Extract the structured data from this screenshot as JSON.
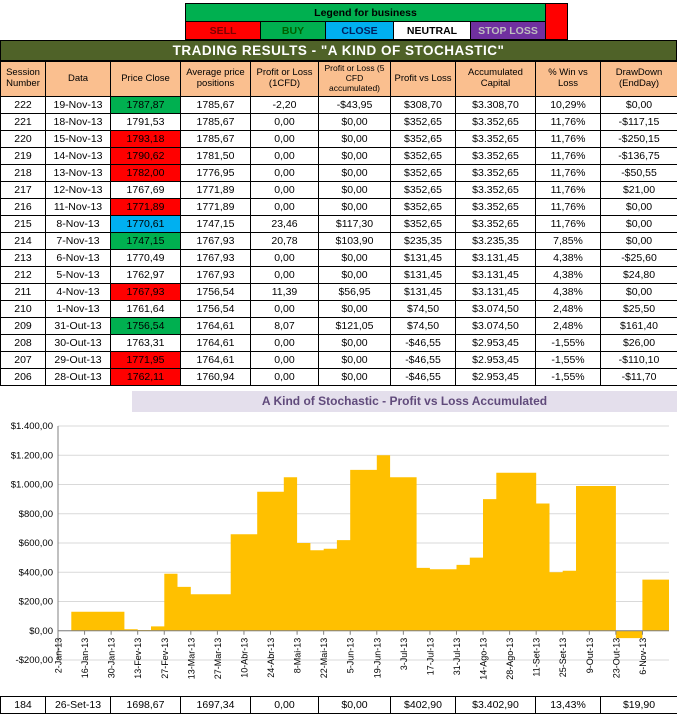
{
  "legend": {
    "title": "Legend for business",
    "title_bg": "#00B050",
    "end_cell_color": "#FF0000",
    "items": [
      {
        "label": "SELL",
        "bg": "#FF0000",
        "fg": "#7F0000"
      },
      {
        "label": "BUY",
        "bg": "#00B050",
        "fg": "#006100"
      },
      {
        "label": "CLOSE",
        "bg": "#00B0F0",
        "fg": "#002060"
      },
      {
        "label": "NEUTRAL",
        "bg": "#FFFFFF",
        "fg": "#000000"
      },
      {
        "label": "STOP LOSS",
        "bg": "#7030A0",
        "fg": "#BFBFBF"
      }
    ]
  },
  "title": "TRADING RESULTS - \"A KIND OF STOCHASTIC\"",
  "table": {
    "headers": [
      "Session Number",
      "Data",
      "Price Close",
      "Average price positions",
      "Profit or Loss (1CFD)",
      "Profit or Loss (5 CFD accumulated)",
      "Profit vs Loss",
      "Accumulated Capital",
      "% Win vs Loss",
      "DrawDown (EndDay)"
    ],
    "cell_colors": {
      "buy": "#00B050",
      "sell": "#FF0000",
      "close": "#00B0F0",
      "none": "#FFFFFF"
    },
    "rows": [
      {
        "session": "222",
        "data": "19-Nov-13",
        "price_close": "1787,87",
        "close_type": "buy",
        "avg_price": "1785,67",
        "pl_1cfd": "-2,20",
        "pl_5cfd": "-$43,95",
        "profit_vs_loss": "$308,70",
        "acc_capital": "$3.308,70",
        "win_vs_loss": "10,29%",
        "drawdown": "$0,00"
      },
      {
        "session": "221",
        "data": "18-Nov-13",
        "price_close": "1791,53",
        "close_type": "none",
        "avg_price": "1785,67",
        "pl_1cfd": "0,00",
        "pl_5cfd": "$0,00",
        "profit_vs_loss": "$352,65",
        "acc_capital": "$3.352,65",
        "win_vs_loss": "11,76%",
        "drawdown": "-$117,15"
      },
      {
        "session": "220",
        "data": "15-Nov-13",
        "price_close": "1793,18",
        "close_type": "sell",
        "avg_price": "1785,67",
        "pl_1cfd": "0,00",
        "pl_5cfd": "$0,00",
        "profit_vs_loss": "$352,65",
        "acc_capital": "$3.352,65",
        "win_vs_loss": "11,76%",
        "drawdown": "-$250,15"
      },
      {
        "session": "219",
        "data": "14-Nov-13",
        "price_close": "1790,62",
        "close_type": "sell",
        "avg_price": "1781,50",
        "pl_1cfd": "0,00",
        "pl_5cfd": "$0,00",
        "profit_vs_loss": "$352,65",
        "acc_capital": "$3.352,65",
        "win_vs_loss": "11,76%",
        "drawdown": "-$136,75"
      },
      {
        "session": "218",
        "data": "13-Nov-13",
        "price_close": "1782,00",
        "close_type": "sell",
        "avg_price": "1776,95",
        "pl_1cfd": "0,00",
        "pl_5cfd": "$0,00",
        "profit_vs_loss": "$352,65",
        "acc_capital": "$3.352,65",
        "win_vs_loss": "11,76%",
        "drawdown": "-$50,55"
      },
      {
        "session": "217",
        "data": "12-Nov-13",
        "price_close": "1767,69",
        "close_type": "none",
        "avg_price": "1771,89",
        "pl_1cfd": "0,00",
        "pl_5cfd": "$0,00",
        "profit_vs_loss": "$352,65",
        "acc_capital": "$3.352,65",
        "win_vs_loss": "11,76%",
        "drawdown": "$21,00"
      },
      {
        "session": "216",
        "data": "11-Nov-13",
        "price_close": "1771,89",
        "close_type": "sell",
        "avg_price": "1771,89",
        "pl_1cfd": "0,00",
        "pl_5cfd": "$0,00",
        "profit_vs_loss": "$352,65",
        "acc_capital": "$3.352,65",
        "win_vs_loss": "11,76%",
        "drawdown": "$0,00"
      },
      {
        "session": "215",
        "data": "8-Nov-13",
        "price_close": "1770,61",
        "close_type": "close",
        "avg_price": "1747,15",
        "pl_1cfd": "23,46",
        "pl_5cfd": "$117,30",
        "profit_vs_loss": "$352,65",
        "acc_capital": "$3.352,65",
        "win_vs_loss": "11,76%",
        "drawdown": "$0,00"
      },
      {
        "session": "214",
        "data": "7-Nov-13",
        "price_close": "1747,15",
        "close_type": "buy",
        "avg_price": "1767,93",
        "pl_1cfd": "20,78",
        "pl_5cfd": "$103,90",
        "profit_vs_loss": "$235,35",
        "acc_capital": "$3.235,35",
        "win_vs_loss": "7,85%",
        "drawdown": "$0,00"
      },
      {
        "session": "213",
        "data": "6-Nov-13",
        "price_close": "1770,49",
        "close_type": "none",
        "avg_price": "1767,93",
        "pl_1cfd": "0,00",
        "pl_5cfd": "$0,00",
        "profit_vs_loss": "$131,45",
        "acc_capital": "$3.131,45",
        "win_vs_loss": "4,38%",
        "drawdown": "-$25,60"
      },
      {
        "session": "212",
        "data": "5-Nov-13",
        "price_close": "1762,97",
        "close_type": "none",
        "avg_price": "1767,93",
        "pl_1cfd": "0,00",
        "pl_5cfd": "$0,00",
        "profit_vs_loss": "$131,45",
        "acc_capital": "$3.131,45",
        "win_vs_loss": "4,38%",
        "drawdown": "$24,80"
      },
      {
        "session": "211",
        "data": "4-Nov-13",
        "price_close": "1767,93",
        "close_type": "sell",
        "avg_price": "1756,54",
        "pl_1cfd": "11,39",
        "pl_5cfd": "$56,95",
        "profit_vs_loss": "$131,45",
        "acc_capital": "$3.131,45",
        "win_vs_loss": "4,38%",
        "drawdown": "$0,00"
      },
      {
        "session": "210",
        "data": "1-Nov-13",
        "price_close": "1761,64",
        "close_type": "none",
        "avg_price": "1756,54",
        "pl_1cfd": "0,00",
        "pl_5cfd": "$0,00",
        "profit_vs_loss": "$74,50",
        "acc_capital": "$3.074,50",
        "win_vs_loss": "2,48%",
        "drawdown": "$25,50"
      },
      {
        "session": "209",
        "data": "31-Out-13",
        "price_close": "1756,54",
        "close_type": "buy",
        "avg_price": "1764,61",
        "pl_1cfd": "8,07",
        "pl_5cfd": "$121,05",
        "profit_vs_loss": "$74,50",
        "acc_capital": "$3.074,50",
        "win_vs_loss": "2,48%",
        "drawdown": "$161,40"
      },
      {
        "session": "208",
        "data": "30-Out-13",
        "price_close": "1763,31",
        "close_type": "none",
        "avg_price": "1764,61",
        "pl_1cfd": "0,00",
        "pl_5cfd": "$0,00",
        "profit_vs_loss": "-$46,55",
        "acc_capital": "$2.953,45",
        "win_vs_loss": "-1,55%",
        "drawdown": "$26,00"
      },
      {
        "session": "207",
        "data": "29-Out-13",
        "price_close": "1771,95",
        "close_type": "sell",
        "avg_price": "1764,61",
        "pl_1cfd": "0,00",
        "pl_5cfd": "$0,00",
        "profit_vs_loss": "-$46,55",
        "acc_capital": "$2.953,45",
        "win_vs_loss": "-1,55%",
        "drawdown": "-$110,10"
      },
      {
        "session": "206",
        "data": "28-Out-13",
        "price_close": "1762,11",
        "close_type": "sell",
        "avg_price": "1760,94",
        "pl_1cfd": "0,00",
        "pl_5cfd": "$0,00",
        "profit_vs_loss": "-$46,55",
        "acc_capital": "$2.953,45",
        "win_vs_loss": "-1,55%",
        "drawdown": "-$11,70"
      }
    ]
  },
  "footer_row": {
    "session": "184",
    "data": "26-Set-13",
    "price_close": "1698,67",
    "close_type": "none",
    "avg_price": "1697,34",
    "pl_1cfd": "0,00",
    "pl_5cfd": "$0,00",
    "profit_vs_loss": "$402,90",
    "acc_capital": "$3.402,90",
    "win_vs_loss": "13,43%",
    "drawdown": "$19,90"
  },
  "chart_data": {
    "type": "area",
    "title": "A Kind of Stochastic - Profit vs Loss Accumulated",
    "ylim": [
      -200,
      1400
    ],
    "y_step": 200,
    "y_tick_labels": [
      "-$200,00",
      "$0,00",
      "$200,00",
      "$400,00",
      "$600,00",
      "$800,00",
      "$1.000,00",
      "$1.200,00",
      "$1.400,00"
    ],
    "x_tick_labels": [
      "2-Jan-13",
      "16-Jan-13",
      "30-Jan-13",
      "13-Fev-13",
      "27-Fev-13",
      "13-Mar-13",
      "27-Mar-13",
      "10-Abr-13",
      "24-Abr-13",
      "8-Mai-13",
      "22-Mai-13",
      "5-Jun-13",
      "19-Jun-13",
      "3-Jul-13",
      "17-Jul-13",
      "31-Jul-13",
      "14-Ago-13",
      "28-Ago-13",
      "11-Set-13",
      "25-Set-13",
      "9-Out-13",
      "23-Out-13",
      "6-Nov-13"
    ],
    "x_ticks_every_n_points": 2,
    "series": [
      {
        "name": "Profit vs Loss Accumulated",
        "values": [
          0,
          130,
          130,
          130,
          130,
          10,
          5,
          30,
          390,
          300,
          250,
          250,
          250,
          660,
          660,
          950,
          950,
          1050,
          600,
          550,
          560,
          620,
          1100,
          1100,
          1200,
          1050,
          1050,
          430,
          420,
          420,
          450,
          500,
          900,
          1080,
          1080,
          1080,
          870,
          400,
          410,
          990,
          990,
          990,
          -50,
          -50,
          350,
          350,
          350
        ]
      }
    ],
    "fill_color": "#FFC000",
    "grid_color": "#D9D9D9",
    "axis_color": "#808080",
    "interpolation": "step",
    "legend_position": "none",
    "grid": true
  }
}
